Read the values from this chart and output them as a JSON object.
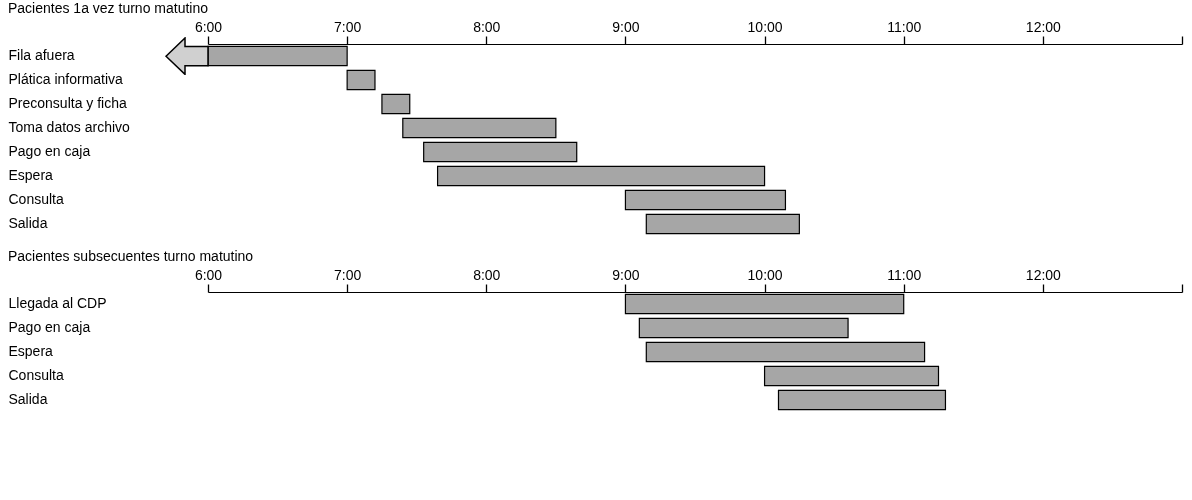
{
  "chart_data": [
    {
      "type": "bar",
      "orientation": "horizontal",
      "title": "Pacientes 1a vez turno matutino",
      "categories": [
        "Fila afuera",
        "Plática informativa",
        "Preconsulta y ficha",
        "Toma datos archivo",
        "Pago en caja",
        "Espera",
        "Consulta",
        "Salida"
      ],
      "base": [
        6,
        7,
        7.25,
        7.4,
        7.55,
        7.65,
        9,
        9.15
      ],
      "values": [
        1,
        0.2,
        0.2,
        1.1,
        1.1,
        2.35,
        1.15,
        1.1
      ],
      "color": "#a6a6a6",
      "grid": false,
      "xlim": [
        6,
        13
      ],
      "xticks": [
        {
          "value": 6,
          "label": "6:00"
        },
        {
          "value": 7,
          "label": "7:00"
        },
        {
          "value": 8,
          "label": "8:00"
        },
        {
          "value": 9,
          "label": "9:00"
        },
        {
          "value": 10,
          "label": "10:00"
        },
        {
          "value": 11,
          "label": "11:00"
        },
        {
          "value": 12,
          "label": "12:00"
        },
        {
          "value": 13,
          "label": null
        }
      ]
    },
    {
      "type": "bar",
      "orientation": "horizontal",
      "title": "Pacientes subsecuentes turno matutino",
      "categories": [
        "Llegada al CDP",
        "Pago en caja",
        "Espera",
        "Consulta",
        "Salida"
      ],
      "base": [
        9,
        9.1,
        9.15,
        10,
        10.1
      ],
      "values": [
        2,
        1.5,
        2,
        1.25,
        1.2
      ],
      "color": "#a6a6a6",
      "grid": false,
      "xlim": [
        6,
        13
      ],
      "xticks": [
        {
          "value": 6,
          "label": "6:00"
        },
        {
          "value": 7,
          "label": "7:00"
        },
        {
          "value": 8,
          "label": "8:00"
        },
        {
          "value": 9,
          "label": "9:00"
        },
        {
          "value": 10,
          "label": "10:00"
        },
        {
          "value": 11,
          "label": "11:00"
        },
        {
          "value": 12,
          "label": "12:00"
        },
        {
          "value": 13,
          "label": null
        }
      ]
    }
  ]
}
